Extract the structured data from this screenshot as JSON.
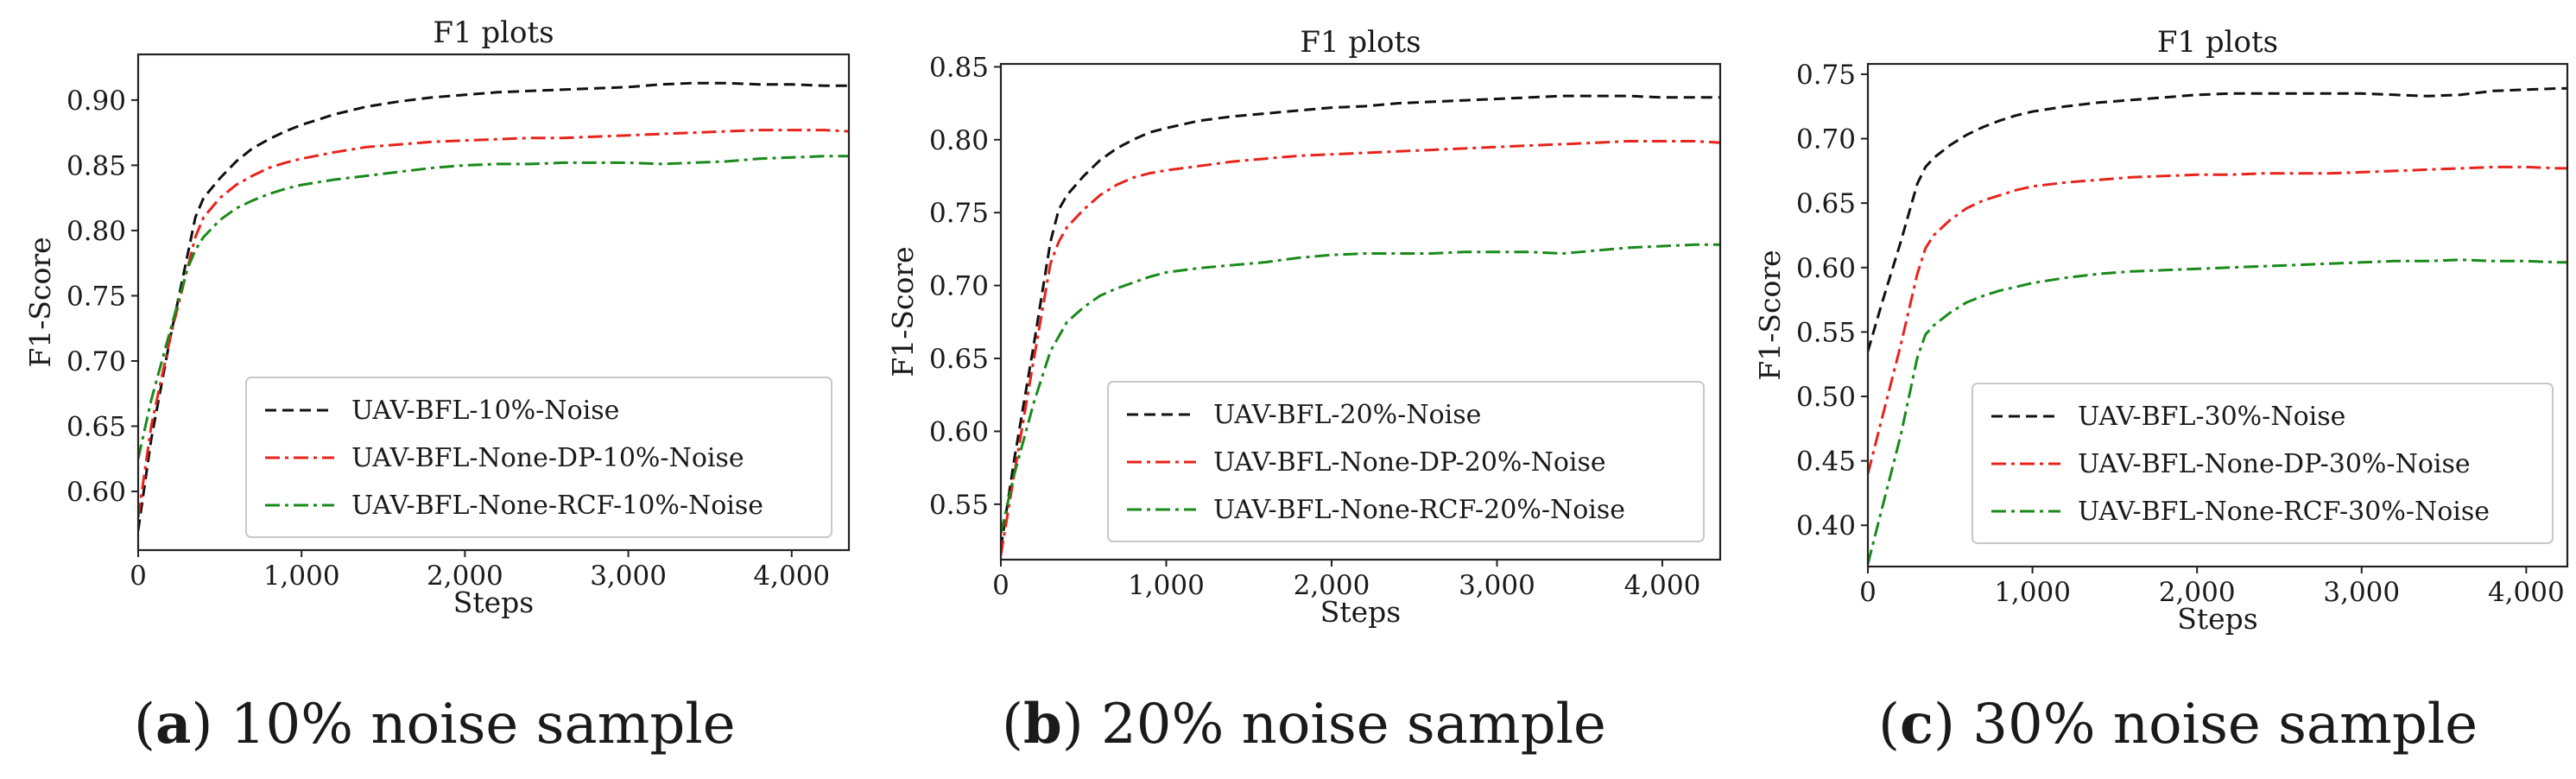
{
  "figure": {
    "panels": [
      {
        "caption_letter": "a",
        "caption_text": "10% noise sample"
      },
      {
        "caption_letter": "b",
        "caption_text": "20% noise sample"
      },
      {
        "caption_letter": "c",
        "caption_text": "30% noise sample"
      }
    ]
  },
  "colors": {
    "black": "#111111",
    "red": "#e8231c",
    "green": "#198a1a"
  },
  "chart_data": [
    {
      "type": "line",
      "title": "F1 plots",
      "xlabel": "Steps",
      "ylabel": "F1-Score",
      "xlim": [
        0,
        4350
      ],
      "ylim": [
        0.555,
        0.935
      ],
      "xticks": [
        0,
        1000,
        2000,
        3000,
        4000
      ],
      "xtick_labels": [
        "0",
        "1,000",
        "2,000",
        "3,000",
        "4,000"
      ],
      "yticks": [
        0.6,
        0.65,
        0.7,
        0.75,
        0.8,
        0.85,
        0.9
      ],
      "ytick_labels": [
        "0.60",
        "0.65",
        "0.70",
        "0.75",
        "0.80",
        "0.85",
        "0.90"
      ],
      "legend_position": "lower-right",
      "series": [
        {
          "name": "UAV-BFL-10%-Noise",
          "style": "dashed",
          "color": "black",
          "x": [
            0,
            80,
            200,
            300,
            350,
            400,
            500,
            600,
            700,
            800,
            900,
            1000,
            1200,
            1400,
            1600,
            1800,
            2000,
            2200,
            2400,
            2600,
            2800,
            3000,
            3200,
            3400,
            3600,
            3800,
            4000,
            4200,
            4350
          ],
          "y": [
            0.57,
            0.64,
            0.72,
            0.78,
            0.81,
            0.825,
            0.84,
            0.853,
            0.863,
            0.87,
            0.876,
            0.881,
            0.889,
            0.895,
            0.899,
            0.902,
            0.904,
            0.906,
            0.907,
            0.908,
            0.909,
            0.91,
            0.912,
            0.913,
            0.913,
            0.912,
            0.912,
            0.911,
            0.911
          ]
        },
        {
          "name": "UAV-BFL-None-DP-10%-Noise",
          "style": "dashdot",
          "color": "red",
          "x": [
            0,
            80,
            200,
            300,
            350,
            400,
            500,
            600,
            700,
            800,
            900,
            1000,
            1200,
            1400,
            1600,
            1800,
            2000,
            2200,
            2400,
            2600,
            2800,
            3000,
            3200,
            3400,
            3600,
            3800,
            4000,
            4200,
            4350
          ],
          "y": [
            0.58,
            0.65,
            0.72,
            0.77,
            0.795,
            0.81,
            0.825,
            0.835,
            0.842,
            0.848,
            0.852,
            0.855,
            0.86,
            0.864,
            0.866,
            0.868,
            0.869,
            0.87,
            0.871,
            0.871,
            0.872,
            0.873,
            0.874,
            0.875,
            0.876,
            0.877,
            0.877,
            0.877,
            0.876
          ]
        },
        {
          "name": "UAV-BFL-None-RCF-10%-Noise",
          "style": "dashdot",
          "color": "green",
          "x": [
            0,
            80,
            200,
            300,
            350,
            400,
            500,
            600,
            700,
            800,
            900,
            1000,
            1200,
            1400,
            1600,
            1800,
            2000,
            2200,
            2400,
            2600,
            2800,
            3000,
            3200,
            3400,
            3600,
            3800,
            4000,
            4200,
            4350
          ],
          "y": [
            0.625,
            0.67,
            0.725,
            0.77,
            0.785,
            0.795,
            0.808,
            0.817,
            0.823,
            0.828,
            0.832,
            0.835,
            0.839,
            0.842,
            0.845,
            0.848,
            0.85,
            0.851,
            0.851,
            0.852,
            0.852,
            0.852,
            0.851,
            0.852,
            0.853,
            0.855,
            0.856,
            0.857,
            0.857
          ]
        }
      ]
    },
    {
      "type": "line",
      "title": "F1 plots",
      "xlabel": "Steps",
      "ylabel": "F1-Score",
      "xlim": [
        0,
        4350
      ],
      "ylim": [
        0.512,
        0.852
      ],
      "xticks": [
        0,
        1000,
        2000,
        3000,
        4000
      ],
      "xtick_labels": [
        "0",
        "1,000",
        "2,000",
        "3,000",
        "4,000"
      ],
      "yticks": [
        0.55,
        0.6,
        0.65,
        0.7,
        0.75,
        0.8,
        0.85
      ],
      "ytick_labels": [
        "0.55",
        "0.60",
        "0.65",
        "0.70",
        "0.75",
        "0.80",
        "0.85"
      ],
      "legend_position": "lower-right",
      "series": [
        {
          "name": "UAV-BFL-20%-Noise",
          "style": "dashed",
          "color": "black",
          "x": [
            0,
            80,
            200,
            300,
            350,
            400,
            500,
            600,
            700,
            800,
            900,
            1000,
            1200,
            1400,
            1600,
            1800,
            2000,
            2200,
            2400,
            2600,
            2800,
            3000,
            3200,
            3400,
            3600,
            3800,
            4000,
            4200,
            4350
          ],
          "y": [
            0.52,
            0.58,
            0.66,
            0.73,
            0.752,
            0.762,
            0.775,
            0.786,
            0.794,
            0.8,
            0.805,
            0.808,
            0.813,
            0.816,
            0.818,
            0.82,
            0.822,
            0.823,
            0.825,
            0.826,
            0.827,
            0.828,
            0.829,
            0.83,
            0.83,
            0.83,
            0.829,
            0.829,
            0.829
          ]
        },
        {
          "name": "UAV-BFL-None-DP-20%-Noise",
          "style": "dashdot",
          "color": "red",
          "x": [
            0,
            80,
            200,
            300,
            350,
            400,
            500,
            600,
            700,
            800,
            900,
            1000,
            1200,
            1400,
            1600,
            1800,
            2000,
            2200,
            2400,
            2600,
            2800,
            3000,
            3200,
            3400,
            3600,
            3800,
            4000,
            4200,
            4350
          ],
          "y": [
            0.515,
            0.57,
            0.65,
            0.715,
            0.73,
            0.74,
            0.752,
            0.762,
            0.769,
            0.774,
            0.777,
            0.779,
            0.782,
            0.785,
            0.787,
            0.789,
            0.79,
            0.791,
            0.792,
            0.793,
            0.794,
            0.795,
            0.796,
            0.797,
            0.798,
            0.799,
            0.799,
            0.799,
            0.798
          ]
        },
        {
          "name": "UAV-BFL-None-RCF-20%-Noise",
          "style": "dashdot",
          "color": "green",
          "x": [
            0,
            80,
            200,
            300,
            350,
            400,
            500,
            600,
            700,
            800,
            900,
            1000,
            1200,
            1400,
            1600,
            1800,
            2000,
            2200,
            2400,
            2600,
            2800,
            3000,
            3200,
            3400,
            3600,
            3800,
            4000,
            4200,
            4350
          ],
          "y": [
            0.53,
            0.57,
            0.62,
            0.655,
            0.665,
            0.675,
            0.685,
            0.693,
            0.698,
            0.702,
            0.706,
            0.709,
            0.712,
            0.714,
            0.716,
            0.719,
            0.721,
            0.722,
            0.722,
            0.722,
            0.723,
            0.723,
            0.723,
            0.722,
            0.724,
            0.726,
            0.727,
            0.728,
            0.728
          ]
        }
      ]
    },
    {
      "type": "line",
      "title": "F1 plots",
      "xlabel": "Steps",
      "ylabel": "F1-Score",
      "xlim": [
        0,
        4250
      ],
      "ylim": [
        0.368,
        0.758
      ],
      "xticks": [
        0,
        1000,
        2000,
        3000,
        4000
      ],
      "xtick_labels": [
        "0",
        "1,000",
        "2,000",
        "3,000",
        "4,000"
      ],
      "yticks": [
        0.4,
        0.45,
        0.5,
        0.55,
        0.6,
        0.65,
        0.7,
        0.75
      ],
      "ytick_labels": [
        "0.40",
        "0.45",
        "0.50",
        "0.55",
        "0.60",
        "0.65",
        "0.70",
        "0.75"
      ],
      "legend_position": "lower-right",
      "series": [
        {
          "name": "UAV-BFL-30%-Noise",
          "style": "dashed",
          "color": "black",
          "x": [
            0,
            80,
            200,
            300,
            350,
            400,
            500,
            600,
            700,
            800,
            900,
            1000,
            1200,
            1400,
            1600,
            1800,
            2000,
            2200,
            2400,
            2600,
            2800,
            3000,
            3200,
            3400,
            3600,
            3800,
            4000,
            4200,
            4250
          ],
          "y": [
            0.535,
            0.57,
            0.62,
            0.665,
            0.678,
            0.685,
            0.695,
            0.703,
            0.709,
            0.714,
            0.718,
            0.721,
            0.725,
            0.728,
            0.73,
            0.732,
            0.734,
            0.735,
            0.735,
            0.735,
            0.735,
            0.735,
            0.734,
            0.733,
            0.734,
            0.737,
            0.738,
            0.739,
            0.739
          ]
        },
        {
          "name": "UAV-BFL-None-DP-30%-Noise",
          "style": "dashdot",
          "color": "red",
          "x": [
            0,
            80,
            200,
            300,
            350,
            400,
            500,
            600,
            700,
            800,
            900,
            1000,
            1200,
            1400,
            1600,
            1800,
            2000,
            2200,
            2400,
            2600,
            2800,
            3000,
            3200,
            3400,
            3600,
            3800,
            4000,
            4200,
            4250
          ],
          "y": [
            0.44,
            0.48,
            0.54,
            0.595,
            0.615,
            0.625,
            0.637,
            0.646,
            0.652,
            0.656,
            0.66,
            0.663,
            0.666,
            0.668,
            0.67,
            0.671,
            0.672,
            0.672,
            0.673,
            0.673,
            0.673,
            0.674,
            0.675,
            0.676,
            0.677,
            0.678,
            0.678,
            0.677,
            0.677
          ]
        },
        {
          "name": "UAV-BFL-None-RCF-30%-Noise",
          "style": "dashdot",
          "color": "green",
          "x": [
            0,
            80,
            200,
            300,
            350,
            400,
            500,
            600,
            700,
            800,
            900,
            1000,
            1200,
            1400,
            1600,
            1800,
            2000,
            2200,
            2400,
            2600,
            2800,
            3000,
            3200,
            3400,
            3600,
            3800,
            4000,
            4200,
            4250
          ],
          "y": [
            0.37,
            0.41,
            0.47,
            0.53,
            0.548,
            0.555,
            0.565,
            0.573,
            0.578,
            0.582,
            0.585,
            0.588,
            0.592,
            0.595,
            0.597,
            0.598,
            0.599,
            0.6,
            0.601,
            0.602,
            0.603,
            0.604,
            0.605,
            0.605,
            0.606,
            0.605,
            0.605,
            0.604,
            0.604
          ]
        }
      ]
    }
  ]
}
